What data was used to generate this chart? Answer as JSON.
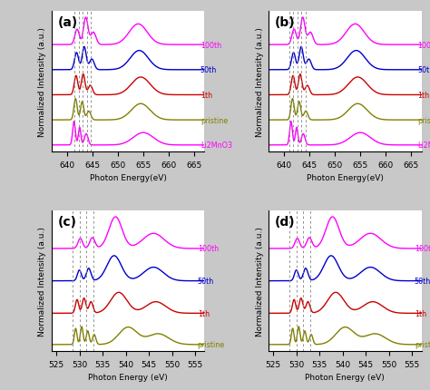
{
  "panel_labels": [
    "(a)",
    "(b)",
    "(c)",
    "(d)"
  ],
  "mn_xlim": [
    637,
    667
  ],
  "mn_xticks": [
    640,
    645,
    650,
    655,
    660,
    665
  ],
  "mn_xlabel": "Photon Energy(eV)",
  "o_xlim": [
    524,
    557
  ],
  "o_xticks": [
    525,
    530,
    535,
    540,
    545,
    550,
    555
  ],
  "o_xlabel": "Photon Energy (eV)",
  "ylabel": "Normalized Intensity (a.u.)",
  "colors_5": [
    "#ff00ff",
    "#0000cc",
    "#cc0000",
    "#808000",
    "#ff00ff"
  ],
  "colors_4": [
    "#ff00ff",
    "#0000cc",
    "#cc0000",
    "#808000"
  ],
  "mn_vlines_a": [
    641.5,
    642.3,
    643.1,
    643.9,
    644.6
  ],
  "mn_vlines_b": [
    641.0,
    641.8,
    642.6,
    643.4,
    644.2
  ],
  "o_vlines": [
    528.5,
    530.0,
    531.5,
    533.0
  ],
  "bg_color": "#c8c8c8",
  "mn_offsets": [
    0.0,
    0.85,
    1.7,
    2.55,
    3.4
  ],
  "o_offsets": [
    0.0,
    0.9,
    1.8,
    2.7
  ],
  "labels_5": [
    "Li2MnO3",
    "pristine",
    "1th",
    "50th",
    "100th"
  ],
  "labels_4": [
    "pristine",
    "1th",
    "50th",
    "100th"
  ]
}
